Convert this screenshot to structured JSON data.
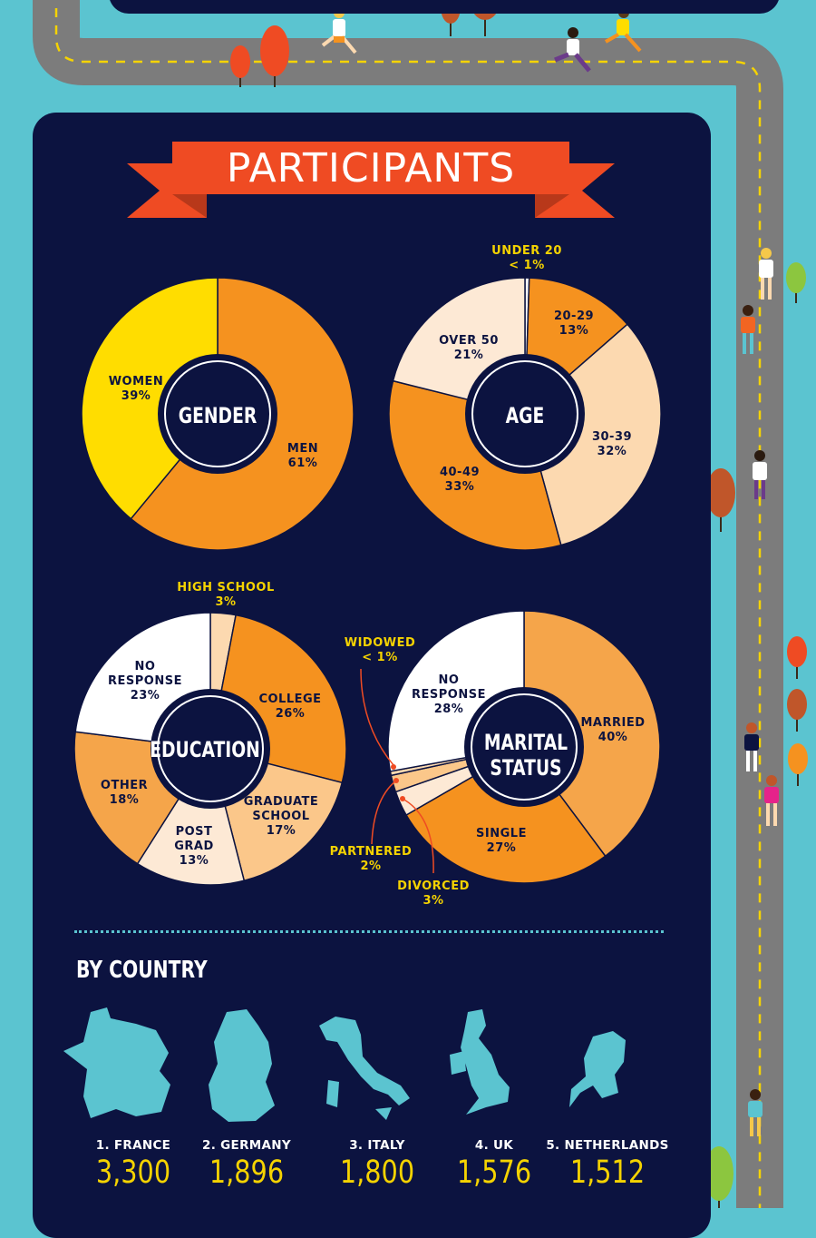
{
  "banner": {
    "title": "PARTICIPANTS"
  },
  "colors": {
    "navy": "#0c1340",
    "road": "#7c7c7c",
    "sky": "#5bc4d0",
    "orange": "#f5921f",
    "mid_orange": "#f5a54a",
    "light_orange": "#fbc78a",
    "peach": "#fcd9b0",
    "cream": "#fde9d5",
    "white": "#ffffff",
    "yellow": "#ffdd00",
    "label_yellow": "#f5d300",
    "banner_red": "#ef4b23"
  },
  "chart_data": [
    {
      "type": "pie",
      "title": "GENDER",
      "slices": [
        {
          "label": "MEN",
          "value": 61
        },
        {
          "label": "WOMEN",
          "value": 39
        }
      ]
    },
    {
      "type": "pie",
      "title": "AGE",
      "slices": [
        {
          "label": "UNDER 20",
          "value": 0.5,
          "display": "< 1%"
        },
        {
          "label": "20-29",
          "value": 13
        },
        {
          "label": "30-39",
          "value": 32
        },
        {
          "label": "40-49",
          "value": 33
        },
        {
          "label": "OVER 50",
          "value": 21
        }
      ]
    },
    {
      "type": "pie",
      "title": "EDUCATION",
      "slices": [
        {
          "label": "HIGH SCHOOL",
          "value": 3
        },
        {
          "label": "COLLEGE",
          "value": 26
        },
        {
          "label": "GRADUATE SCHOOL",
          "value": 17
        },
        {
          "label": "POST GRAD",
          "value": 13
        },
        {
          "label": "OTHER",
          "value": 18
        },
        {
          "label": "NO RESPONSE",
          "value": 23
        }
      ]
    },
    {
      "type": "pie",
      "title": "MARITAL STATUS",
      "slices": [
        {
          "label": "MARRIED",
          "value": 40
        },
        {
          "label": "SINGLE",
          "value": 27
        },
        {
          "label": "DIVORCED",
          "value": 3
        },
        {
          "label": "PARTNERED",
          "value": 2
        },
        {
          "label": "WIDOWED",
          "value": 0.5,
          "display": "< 1%"
        },
        {
          "label": "NO RESPONSE",
          "value": 28
        }
      ]
    },
    {
      "type": "table",
      "title": "BY COUNTRY",
      "rows": [
        {
          "rank": "1.",
          "country": "FRANCE",
          "participants": 3300,
          "display": "3,300"
        },
        {
          "rank": "2.",
          "country": "GERMANY",
          "participants": 1896,
          "display": "1,896"
        },
        {
          "rank": "3.",
          "country": "ITALY",
          "participants": 1800,
          "display": "1,800"
        },
        {
          "rank": "4.",
          "country": "UK",
          "participants": 1576,
          "display": "1,576"
        },
        {
          "rank": "5.",
          "country": "NETHERLANDS",
          "participants": 1512,
          "display": "1,512"
        }
      ]
    }
  ],
  "labels": {
    "gender": {
      "center": "GENDER",
      "men": [
        "MEN",
        "61%"
      ],
      "women": [
        "WOMEN",
        "39%"
      ]
    },
    "age": {
      "center": "AGE",
      "under20": [
        "UNDER 20",
        "< 1%"
      ],
      "a20": [
        "20-29",
        "13%"
      ],
      "a30": [
        "30-39",
        "32%"
      ],
      "a40": [
        "40-49",
        "33%"
      ],
      "over50": [
        "OVER 50",
        "21%"
      ]
    },
    "education": {
      "center": "EDUCATION",
      "highschool": [
        "HIGH SCHOOL",
        "3%"
      ],
      "college": [
        "COLLEGE",
        "26%"
      ],
      "graduate": [
        "GRADUATE",
        "SCHOOL",
        "17%"
      ],
      "postgrad": [
        "POST",
        "GRAD",
        "13%"
      ],
      "other": [
        "OTHER",
        "18%"
      ],
      "noresp": [
        "NO",
        "RESPONSE",
        "23%"
      ]
    },
    "marital": {
      "center": [
        "MARITAL",
        "STATUS"
      ],
      "married": [
        "MARRIED",
        "40%"
      ],
      "single": [
        "SINGLE",
        "27%"
      ],
      "divorced": [
        "DIVORCED",
        "3%"
      ],
      "partnered": [
        "PARTNERED",
        "2%"
      ],
      "widowed": [
        "WIDOWED",
        "< 1%"
      ],
      "noresp": [
        "NO",
        "RESPONSE",
        "28%"
      ]
    }
  },
  "by_country": {
    "heading": "BY COUNTRY",
    "items": [
      {
        "name": "1. FRANCE",
        "value": "3,300",
        "icon": "france-map-icon"
      },
      {
        "name": "2. GERMANY",
        "value": "1,896",
        "icon": "germany-map-icon"
      },
      {
        "name": "3. ITALY",
        "value": "1,800",
        "icon": "italy-map-icon"
      },
      {
        "name": "4. UK",
        "value": "1,576",
        "icon": "uk-map-icon"
      },
      {
        "name": "5. NETHERLANDS",
        "value": "1,512",
        "icon": "netherlands-map-icon"
      }
    ]
  }
}
